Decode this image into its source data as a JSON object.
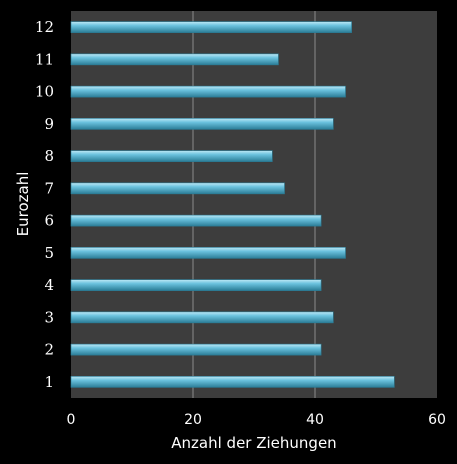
{
  "chart_data": {
    "type": "bar",
    "orientation": "horizontal",
    "categories": [
      "1",
      "2",
      "3",
      "4",
      "5",
      "6",
      "7",
      "8",
      "9",
      "10",
      "11",
      "12"
    ],
    "values": [
      53,
      41,
      43,
      41,
      45,
      41,
      35,
      33,
      43,
      45,
      34,
      46
    ],
    "xlabel": "Anzahl der Ziehungen",
    "ylabel": "Eurozahl",
    "xlim": [
      0,
      60
    ],
    "xticks": [
      "0",
      "20",
      "40",
      "60"
    ],
    "grid": "vertical",
    "legend": "none",
    "colors": {
      "background": "#000000",
      "plot_area": "#3d3d3d",
      "gridline": "#8a8a8a",
      "bar_fill": "#6cc3df",
      "bar_highlight": "#bfe8f5",
      "bar_shadow": "#2b7d97",
      "text": "#ffffff"
    }
  }
}
